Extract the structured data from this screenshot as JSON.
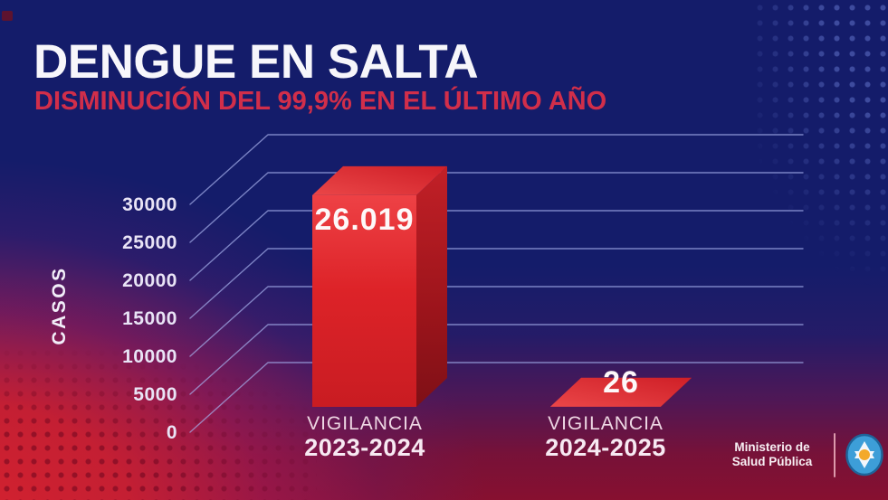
{
  "header": {
    "title": "DENGUE EN SALTA",
    "subtitle": "DISMINUCIÓN DEL 99,9% EN EL ÚLTIMO AÑO"
  },
  "chart_data": {
    "type": "bar",
    "style": "3d-column",
    "title": "DENGUE EN SALTA",
    "subtitle": "DISMINUCIÓN DEL 99,9% EN EL ÚLTIMO AÑO",
    "xlabel": "",
    "ylabel": "CASOS",
    "ylim": [
      0,
      30000
    ],
    "yticks": [
      0,
      5000,
      10000,
      15000,
      20000,
      25000,
      30000
    ],
    "grid": true,
    "legend": false,
    "categories": [
      "VIGILANCIA 2023-2024",
      "VIGILANCIA 2024-2025"
    ],
    "values": [
      26019,
      26
    ],
    "bars": [
      {
        "group_line1": "VIGILANCIA",
        "group_line2": "2023-2024",
        "value": 26019,
        "value_label": "26.019"
      },
      {
        "group_line1": "VIGILANCIA",
        "group_line2": "2024-2025",
        "value": 26,
        "value_label": "26"
      }
    ]
  },
  "footer": {
    "org_line1": "Ministerio de",
    "org_line2": "Salud Pública"
  },
  "colors": {
    "background_navy": "#141c6a",
    "background_red": "#c41f33",
    "bottom_maroon": "#871030",
    "subtitle_red": "#d12e4a",
    "bar_front": "#dd2328",
    "bar_side": "#9c141b",
    "bar_top": "#d92b30",
    "gridline": "#a5afeb",
    "tick_text": "#e9e4f6",
    "logo_blue": "#3d9ed8",
    "logo_sun": "#f3a92b"
  }
}
